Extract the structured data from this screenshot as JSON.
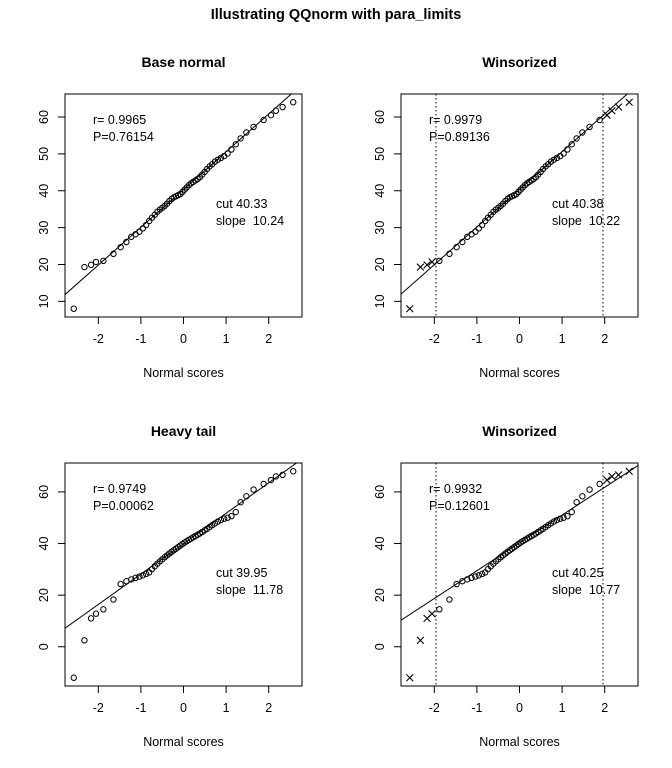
{
  "figure": {
    "title": "Illustrating QQnorm with para_limits",
    "background": "#ffffff",
    "foreground": "#000000"
  },
  "chart_data": [
    {
      "type": "scatter",
      "title": "Base normal",
      "xlabel": "Normal scores",
      "ylabel": "",
      "xlim": [
        -2.782,
        2.782
      ],
      "ylim": [
        5.76,
        66.24
      ],
      "xticks": [
        -2,
        -1,
        0,
        1,
        2
      ],
      "yticks": [
        10,
        20,
        30,
        40,
        50,
        60
      ],
      "grid": false,
      "legend": null,
      "marker": "open-circle",
      "winsorize_limit": null,
      "vlines": [],
      "fit_line": {
        "intercept": 40.33,
        "slope": 10.24
      },
      "annotations": {
        "r": "r= 0.9965",
        "p": "P=0.76154",
        "cut": "cut 40.33",
        "slope": "slope  10.24"
      },
      "x": [
        -2.576,
        -2.326,
        -2.17,
        -2.054,
        -1.881,
        -1.645,
        -1.476,
        -1.341,
        -1.227,
        -1.126,
        -1.036,
        -0.954,
        -0.878,
        -0.806,
        -0.739,
        -0.674,
        -0.613,
        -0.553,
        -0.496,
        -0.44,
        -0.385,
        -0.332,
        -0.279,
        -0.228,
        -0.176,
        -0.126,
        -0.075,
        -0.025,
        0.025,
        0.075,
        0.126,
        0.176,
        0.228,
        0.279,
        0.332,
        0.385,
        0.44,
        0.496,
        0.553,
        0.613,
        0.674,
        0.739,
        0.806,
        0.878,
        0.954,
        1.036,
        1.126,
        1.227,
        1.341,
        1.476,
        1.645,
        1.881,
        2.054,
        2.17,
        2.326,
        2.576
      ],
      "y": [
        8,
        19.3,
        19.9,
        20.7,
        21,
        22.9,
        24.7,
        26.1,
        27.5,
        28.2,
        28.9,
        29.8,
        30.7,
        31.8,
        32.7,
        33.5,
        34.3,
        34.9,
        35.4,
        35.9,
        36.5,
        37.2,
        37.8,
        38.2,
        38.5,
        38.8,
        39.1,
        39.7,
        40.3,
        40.9,
        41.5,
        42,
        42.4,
        42.8,
        43.2,
        43.7,
        44.4,
        45.1,
        45.9,
        46.6,
        47.2,
        47.9,
        48.4,
        48.9,
        49.4,
        50.1,
        51.2,
        52.6,
        54.2,
        55.8,
        57.3,
        59.2,
        60.5,
        61.7,
        62.7,
        64
      ]
    },
    {
      "type": "scatter",
      "title": "Winsorized",
      "xlabel": "Normal scores",
      "ylabel": "",
      "xlim": [
        -2.782,
        2.782
      ],
      "ylim": [
        5.76,
        66.24
      ],
      "xticks": [
        -2,
        -1,
        0,
        1,
        2
      ],
      "yticks": [
        10,
        20,
        30,
        40,
        50,
        60
      ],
      "grid": false,
      "legend": null,
      "marker": "open-circle",
      "winsorized_marker": "x",
      "winsorize_limit": 1.96,
      "vlines": [
        -1.96,
        1.96
      ],
      "fit_line": {
        "intercept": 40.38,
        "slope": 10.22
      },
      "annotations": {
        "r": "r= 0.9979",
        "p": "P=0.89136",
        "cut": "cut 40.38",
        "slope": "slope  10.22"
      },
      "x": [
        -2.576,
        -2.326,
        -2.17,
        -2.054,
        -1.881,
        -1.645,
        -1.476,
        -1.341,
        -1.227,
        -1.126,
        -1.036,
        -0.954,
        -0.878,
        -0.806,
        -0.739,
        -0.674,
        -0.613,
        -0.553,
        -0.496,
        -0.44,
        -0.385,
        -0.332,
        -0.279,
        -0.228,
        -0.176,
        -0.126,
        -0.075,
        -0.025,
        0.025,
        0.075,
        0.126,
        0.176,
        0.228,
        0.279,
        0.332,
        0.385,
        0.44,
        0.496,
        0.553,
        0.613,
        0.674,
        0.739,
        0.806,
        0.878,
        0.954,
        1.036,
        1.126,
        1.227,
        1.341,
        1.476,
        1.645,
        1.881,
        2.054,
        2.17,
        2.326,
        2.576
      ],
      "y": [
        8,
        19.3,
        19.9,
        20.7,
        21,
        22.9,
        24.7,
        26.1,
        27.5,
        28.2,
        28.9,
        29.8,
        30.7,
        31.8,
        32.7,
        33.5,
        34.3,
        34.9,
        35.4,
        35.9,
        36.5,
        37.2,
        37.8,
        38.2,
        38.5,
        38.8,
        39.1,
        39.7,
        40.3,
        40.9,
        41.5,
        42,
        42.4,
        42.8,
        43.2,
        43.7,
        44.4,
        45.1,
        45.9,
        46.6,
        47.2,
        47.9,
        48.4,
        48.9,
        49.4,
        50.1,
        51.2,
        52.6,
        54.2,
        55.8,
        57.3,
        59.2,
        60.5,
        61.7,
        62.7,
        64
      ]
    },
    {
      "type": "scatter",
      "title": "Heavy tail",
      "xlabel": "Normal scores",
      "ylabel": "",
      "xlim": [
        -2.782,
        2.782
      ],
      "ylim": [
        -15.2,
        71.2
      ],
      "xticks": [
        -2,
        -1,
        0,
        1,
        2
      ],
      "yticks": [
        0,
        20,
        40,
        60
      ],
      "grid": false,
      "legend": null,
      "marker": "open-circle",
      "winsorize_limit": null,
      "vlines": [],
      "fit_line": {
        "intercept": 39.95,
        "slope": 11.78
      },
      "annotations": {
        "r": "r= 0.9749",
        "p": "P=0.00062",
        "cut": "cut 39.95",
        "slope": "slope  11.78"
      },
      "x": [
        -2.576,
        -2.326,
        -2.17,
        -2.054,
        -1.881,
        -1.645,
        -1.476,
        -1.341,
        -1.227,
        -1.126,
        -1.036,
        -0.954,
        -0.878,
        -0.806,
        -0.739,
        -0.674,
        -0.613,
        -0.553,
        -0.496,
        -0.44,
        -0.385,
        -0.332,
        -0.279,
        -0.228,
        -0.176,
        -0.126,
        -0.075,
        -0.025,
        0.025,
        0.075,
        0.126,
        0.176,
        0.228,
        0.279,
        0.332,
        0.385,
        0.44,
        0.496,
        0.553,
        0.613,
        0.674,
        0.739,
        0.806,
        0.878,
        0.954,
        1.036,
        1.126,
        1.227,
        1.341,
        1.476,
        1.645,
        1.881,
        2.054,
        2.17,
        2.326,
        2.576
      ],
      "y": [
        -12,
        2.5,
        11,
        12.8,
        14.5,
        18.3,
        24.3,
        25.4,
        26.1,
        26.7,
        27.2,
        27.7,
        28.2,
        28.8,
        30.1,
        31.2,
        32.2,
        33.1,
        33.9,
        34.7,
        35.4,
        36.1,
        36.8,
        37.4,
        38,
        38.6,
        39.2,
        39.8,
        40.4,
        40.9,
        41.4,
        41.9,
        42.4,
        42.9,
        43.4,
        43.9,
        44.5,
        45.1,
        45.7,
        46.4,
        47.1,
        47.8,
        48.5,
        49.1,
        49.6,
        50,
        50.6,
        52.2,
        56,
        58.3,
        60.9,
        63.1,
        64.6,
        66,
        66.6,
        68
      ]
    },
    {
      "type": "scatter",
      "title": "Winsorized",
      "xlabel": "Normal scores",
      "ylabel": "",
      "xlim": [
        -2.782,
        2.782
      ],
      "ylim": [
        -15.2,
        71.2
      ],
      "xticks": [
        -2,
        -1,
        0,
        1,
        2
      ],
      "yticks": [
        0,
        20,
        40,
        60
      ],
      "grid": false,
      "legend": null,
      "marker": "open-circle",
      "winsorized_marker": "x",
      "winsorize_limit": 1.96,
      "vlines": [
        -1.96,
        1.96
      ],
      "fit_line": {
        "intercept": 40.25,
        "slope": 10.77
      },
      "annotations": {
        "r": "r= 0.9932",
        "p": "P=0.12601",
        "cut": "cut 40.25",
        "slope": "slope  10.77"
      },
      "x": [
        -2.576,
        -2.326,
        -2.17,
        -2.054,
        -1.881,
        -1.645,
        -1.476,
        -1.341,
        -1.227,
        -1.126,
        -1.036,
        -0.954,
        -0.878,
        -0.806,
        -0.739,
        -0.674,
        -0.613,
        -0.553,
        -0.496,
        -0.44,
        -0.385,
        -0.332,
        -0.279,
        -0.228,
        -0.176,
        -0.126,
        -0.075,
        -0.025,
        0.025,
        0.075,
        0.126,
        0.176,
        0.228,
        0.279,
        0.332,
        0.385,
        0.44,
        0.496,
        0.553,
        0.613,
        0.674,
        0.739,
        0.806,
        0.878,
        0.954,
        1.036,
        1.126,
        1.227,
        1.341,
        1.476,
        1.645,
        1.881,
        2.054,
        2.17,
        2.326,
        2.576
      ],
      "y": [
        -12,
        2.5,
        11,
        12.8,
        14.5,
        18.3,
        24.3,
        25.4,
        26.1,
        26.7,
        27.2,
        27.7,
        28.2,
        28.8,
        30.1,
        31.2,
        32.2,
        33.1,
        33.9,
        34.7,
        35.4,
        36.1,
        36.8,
        37.4,
        38,
        38.6,
        39.2,
        39.8,
        40.4,
        40.9,
        41.4,
        41.9,
        42.4,
        42.9,
        43.4,
        43.9,
        44.5,
        45.1,
        45.7,
        46.4,
        47.1,
        47.8,
        48.5,
        49.1,
        49.6,
        50,
        50.6,
        52.2,
        56,
        58.3,
        60.9,
        63.1,
        64.6,
        66,
        66.6,
        68
      ]
    }
  ]
}
